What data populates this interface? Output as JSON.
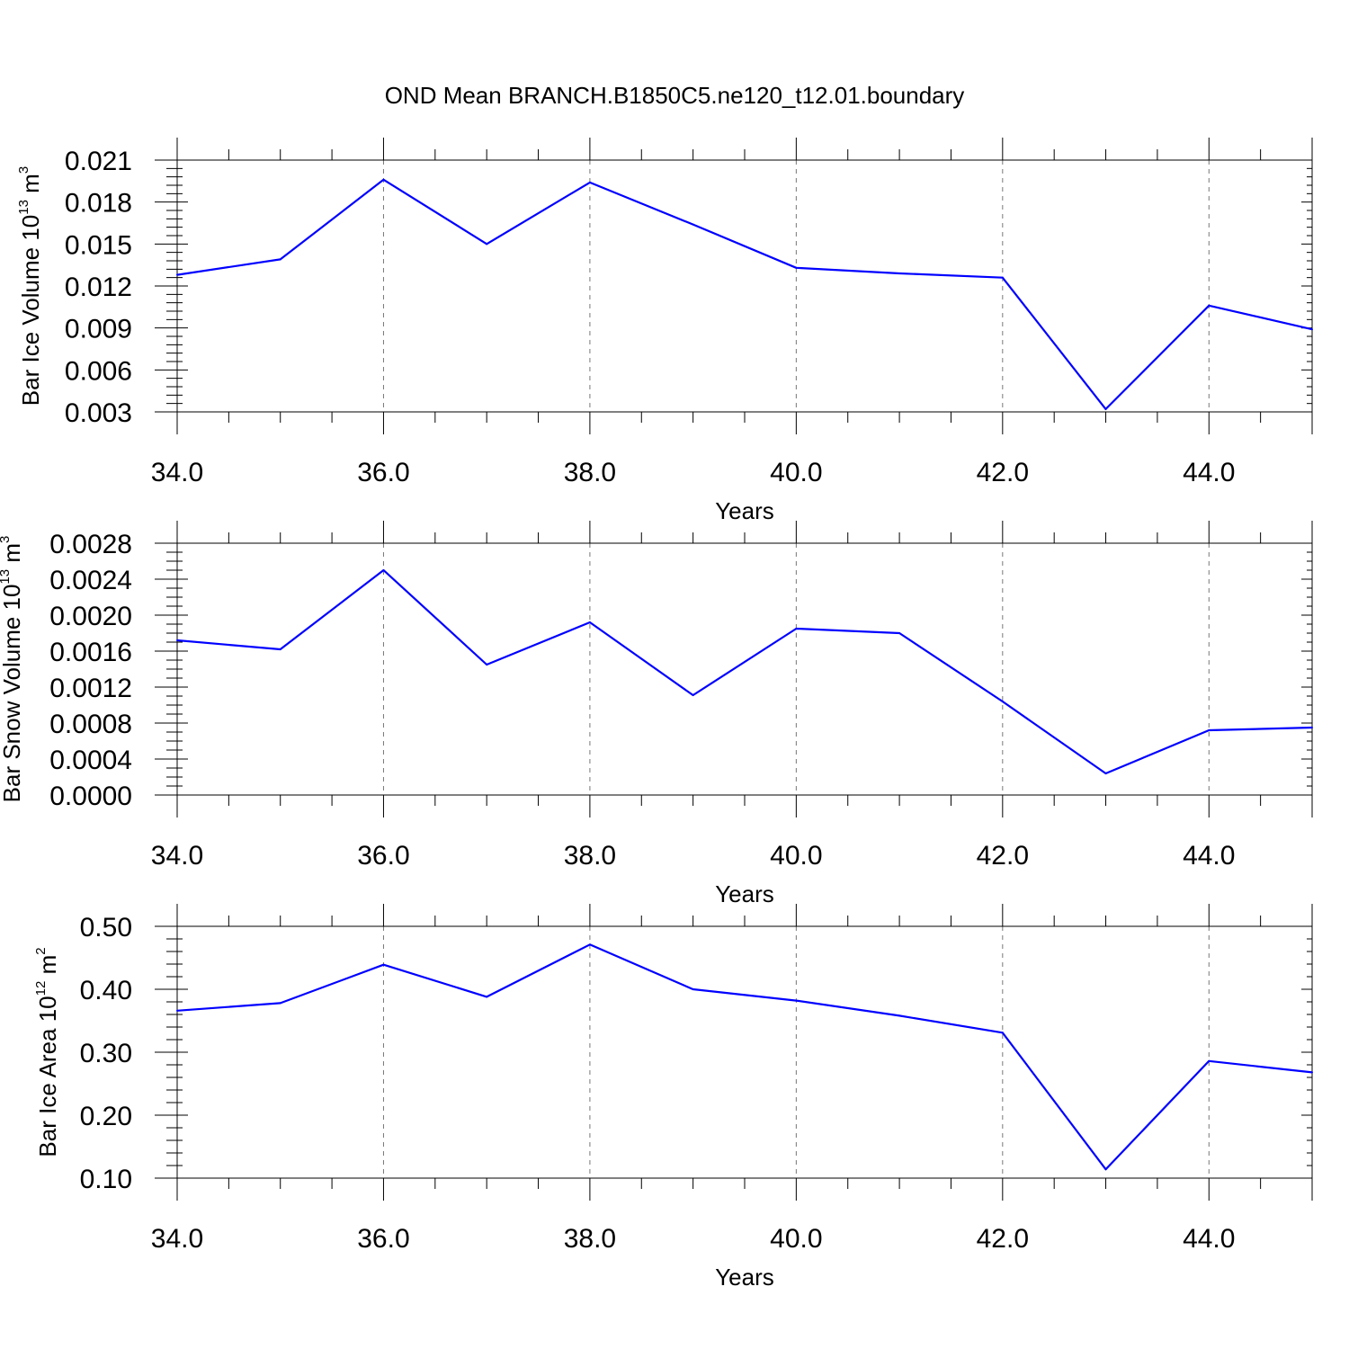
{
  "title": "OND Mean BRANCH.B1850C5.ne120_t12.01.boundary",
  "colors": {
    "line": "#0000ff",
    "axis": "#000000",
    "grid": "#777777"
  },
  "chart_data": [
    {
      "type": "line",
      "xlabel": "Years",
      "ylabel": {
        "main": "Bar Ice Volume 10",
        "exp": "13",
        "unit": " m",
        "unit_exp": "3"
      },
      "x": [
        34,
        35,
        36,
        37,
        38,
        39,
        40,
        41,
        42,
        43,
        44,
        45
      ],
      "values": [
        0.0128,
        0.0139,
        0.0196,
        0.015,
        0.0194,
        0.0164,
        0.0133,
        0.0129,
        0.0126,
        0.0032,
        0.0106,
        0.0089
      ],
      "xlim": [
        34,
        45
      ],
      "ylim": [
        0.003,
        0.021
      ],
      "xticks": [
        34,
        36,
        38,
        40,
        42,
        44
      ],
      "xtick_labels": [
        "34.0",
        "36.0",
        "38.0",
        "40.0",
        "42.0",
        "44.0"
      ],
      "yticks": [
        0.003,
        0.006,
        0.009,
        0.012,
        0.015,
        0.018,
        0.021
      ],
      "ytick_labels": [
        "0.003",
        "0.006",
        "0.009",
        "0.012",
        "0.015",
        "0.018",
        "0.021"
      ],
      "yminor_step": 0.0006,
      "grid": "vertical dashed at major x ticks"
    },
    {
      "type": "line",
      "xlabel": "Years",
      "ylabel": {
        "main": "Bar Snow Volume 10",
        "exp": "13",
        "unit": " m",
        "unit_exp": "3"
      },
      "x": [
        34,
        35,
        36,
        37,
        38,
        39,
        40,
        41,
        42,
        43,
        44,
        45
      ],
      "values": [
        0.00172,
        0.00162,
        0.0025,
        0.00145,
        0.00192,
        0.00111,
        0.00185,
        0.0018,
        0.00104,
        0.00024,
        0.00072,
        0.00075
      ],
      "xlim": [
        34,
        45
      ],
      "ylim": [
        0.0,
        0.0028
      ],
      "xticks": [
        34,
        36,
        38,
        40,
        42,
        44
      ],
      "xtick_labels": [
        "34.0",
        "36.0",
        "38.0",
        "40.0",
        "42.0",
        "44.0"
      ],
      "yticks": [
        0.0,
        0.0004,
        0.0008,
        0.0012,
        0.0016,
        0.002,
        0.0024,
        0.0028
      ],
      "ytick_labels": [
        "0.0000",
        "0.0004",
        "0.0008",
        "0.0012",
        "0.0016",
        "0.0020",
        "0.0024",
        "0.0028"
      ],
      "yminor_step": 0.0001,
      "grid": "vertical dashed at major x ticks"
    },
    {
      "type": "line",
      "xlabel": "Years",
      "ylabel": {
        "main": "Bar Ice Area 10",
        "exp": "12",
        "unit": " m",
        "unit_exp": "2"
      },
      "x": [
        34,
        35,
        36,
        37,
        38,
        39,
        40,
        41,
        42,
        43,
        44,
        45
      ],
      "values": [
        0.366,
        0.378,
        0.439,
        0.388,
        0.471,
        0.4,
        0.382,
        0.358,
        0.331,
        0.114,
        0.286,
        0.268
      ],
      "xlim": [
        34,
        45
      ],
      "ylim": [
        0.1,
        0.5
      ],
      "xticks": [
        34,
        36,
        38,
        40,
        42,
        44
      ],
      "xtick_labels": [
        "34.0",
        "36.0",
        "38.0",
        "40.0",
        "42.0",
        "44.0"
      ],
      "yticks": [
        0.1,
        0.2,
        0.3,
        0.4,
        0.5
      ],
      "ytick_labels": [
        "0.10",
        "0.20",
        "0.30",
        "0.40",
        "0.50"
      ],
      "yminor_step": 0.02,
      "grid": "vertical dashed at major x ticks"
    }
  ]
}
